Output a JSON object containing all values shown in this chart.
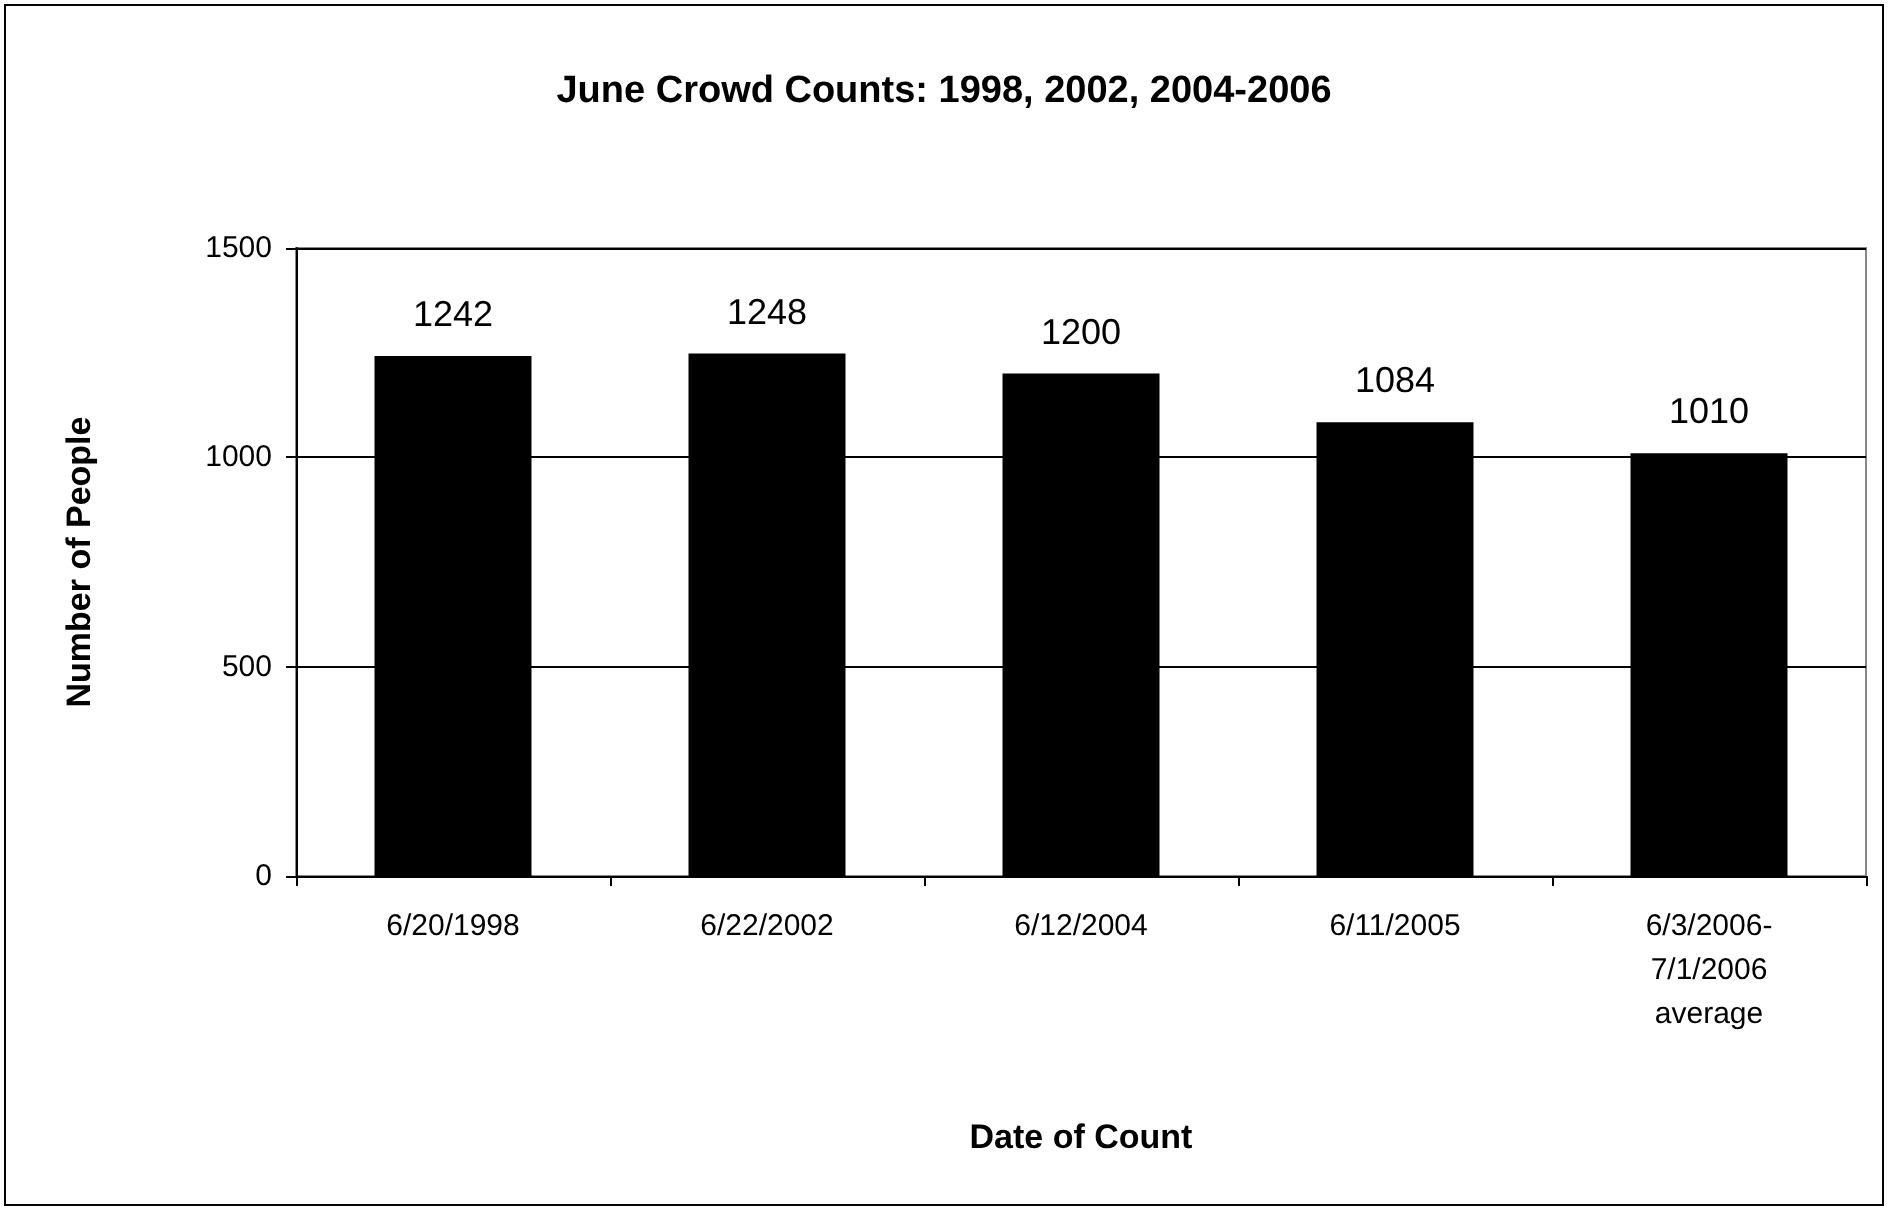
{
  "chart_data": {
    "type": "bar",
    "title": "June Crowd Counts: 1998, 2002, 2004-2006",
    "xlabel": "Date of Count",
    "ylabel": "Number of People",
    "categories": [
      "6/20/1998",
      "6/22/2002",
      "6/12/2004",
      "6/11/2005",
      "6/3/2006-7/1/2006 average"
    ],
    "values": [
      1242,
      1248,
      1200,
      1084,
      1010
    ],
    "color": "#000000",
    "ylim": [
      0,
      1500
    ],
    "yticks": [
      0,
      500,
      1000,
      1500
    ],
    "grid": "y",
    "data_labels": true
  }
}
